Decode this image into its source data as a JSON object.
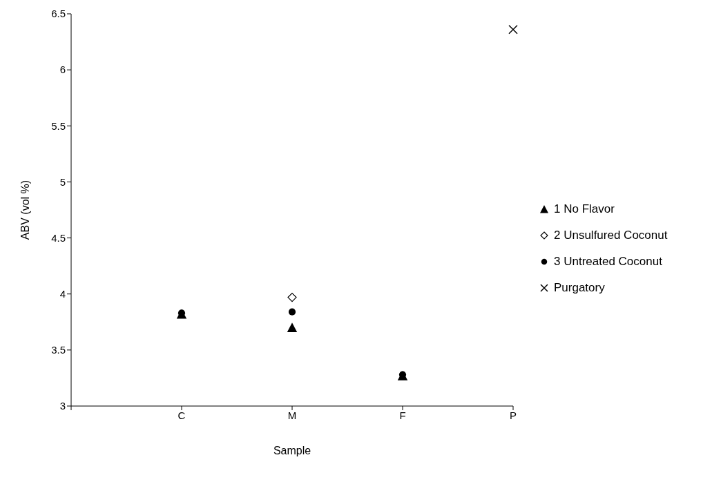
{
  "chart_data": {
    "type": "scatter",
    "xlabel": "Sample",
    "ylabel": "ABV (vol %)",
    "categories": [
      "C",
      "M",
      "F",
      "P"
    ],
    "ylim": [
      3,
      6.5
    ],
    "yticks": [
      3,
      3.5,
      4,
      4.5,
      5,
      5.5,
      6,
      6.5
    ],
    "grid": false,
    "legend": "right",
    "series": [
      {
        "name": "1 No Flavor",
        "color": "#000000",
        "marker": "triangle",
        "values": [
          3.82,
          3.7,
          3.27,
          null
        ]
      },
      {
        "name": "2 Unsulfured Coconut",
        "color": "#000000",
        "marker": "diamond",
        "values": [
          null,
          3.97,
          null,
          null
        ]
      },
      {
        "name": "3 Untreated Coconut",
        "color": "#000000",
        "marker": "circle",
        "values": [
          3.83,
          3.84,
          3.28,
          null
        ]
      },
      {
        "name": "Purgatory",
        "color": "#000000",
        "marker": "cross",
        "values": [
          null,
          null,
          null,
          6.36
        ]
      }
    ]
  }
}
